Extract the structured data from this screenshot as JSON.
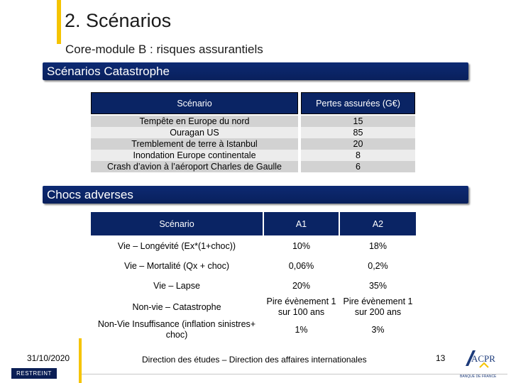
{
  "header": {
    "title": "2. Scénarios",
    "subtitle": "Core-module B : risques assurantiels"
  },
  "catastrophe": {
    "band_title": "Scénarios Catastrophe",
    "columns": [
      "Scénario",
      "Pertes assurées (G€)"
    ],
    "rows": [
      {
        "scenario": "Tempête en Europe du nord",
        "value": "15"
      },
      {
        "scenario": "Ouragan US",
        "value": "85"
      },
      {
        "scenario": "Tremblement de terre à Istanbul",
        "value": "20"
      },
      {
        "scenario": "Inondation Europe continentale",
        "value": "8"
      },
      {
        "scenario": "Crash d’avion à l’aéroport Charles de Gaulle",
        "value": "6"
      }
    ]
  },
  "chocs": {
    "band_title": "Chocs adverses",
    "columns": [
      "Scénario",
      "A1",
      "A2"
    ],
    "rows": [
      {
        "scenario": "Vie – Longévité (Ex*(1+choc))",
        "a1": "10%",
        "a2": "18%"
      },
      {
        "scenario": "Vie – Mortalité (Qx + choc)",
        "a1": "0,06%",
        "a2": "0,2%"
      },
      {
        "scenario": "Vie – Lapse",
        "a1": "20%",
        "a2": "35%"
      },
      {
        "scenario": "Non-vie – Catastrophe",
        "a1": "Pire évènement 1 sur 100 ans",
        "a2": "Pire évènement 1 sur 200 ans"
      },
      {
        "scenario": "Non-Vie Insuffisance (inflation sinistres+ choc)",
        "a1": "1%",
        "a2": "3%"
      }
    ]
  },
  "footer": {
    "date": "31/10/2020",
    "classification": "RESTREINT",
    "text": "Direction des études – Direction des affaires internationales",
    "page": "13",
    "logo_text": "ACPR",
    "logo_caption": "BANQUE DE FRANCE"
  }
}
